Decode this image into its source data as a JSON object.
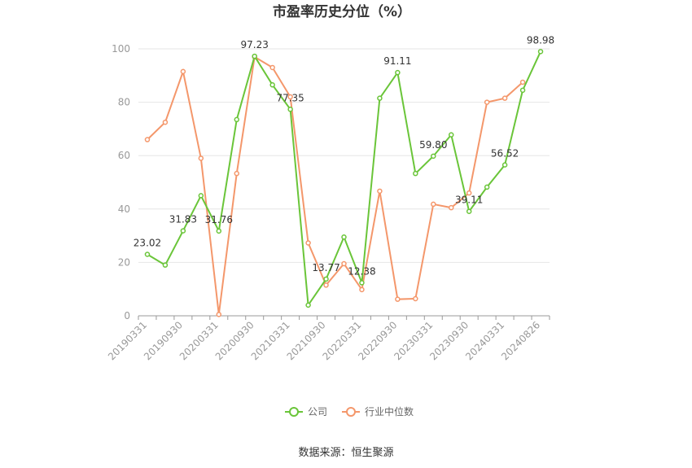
{
  "chart_data": {
    "type": "line",
    "title": "市盈率历史分位（%）",
    "xlabel": "",
    "ylabel": "",
    "ylim": [
      0,
      100
    ],
    "yticks": [
      0,
      20,
      40,
      60,
      80,
      100
    ],
    "categories": [
      "20190331",
      "20190630",
      "20190930",
      "20191231",
      "20200331",
      "20200630",
      "20200930",
      "20201231",
      "20210331",
      "20210630",
      "20210930",
      "20211231",
      "20220331",
      "20220630",
      "20220930",
      "20221231",
      "20230331",
      "20230630",
      "20230930",
      "20231231",
      "20240331",
      "20240630",
      "20240826"
    ],
    "xtick_labels": [
      "20190331",
      "20190930",
      "20200331",
      "20200930",
      "20210331",
      "20210930",
      "20220331",
      "20220930",
      "20230331",
      "20230930",
      "20240331",
      "20240826"
    ],
    "series": [
      {
        "name": "公司",
        "color": "#6ac539",
        "values": [
          23.02,
          19.0,
          31.83,
          45.0,
          31.76,
          73.5,
          97.23,
          86.5,
          77.35,
          4.0,
          13.77,
          29.5,
          12.38,
          81.5,
          91.11,
          53.3,
          59.8,
          67.8,
          39.11,
          48.2,
          56.52,
          84.5,
          98.98
        ],
        "labels": [
          "23.02",
          null,
          "31.83",
          null,
          "31.76",
          null,
          "97.23",
          null,
          "77.35",
          null,
          "13.77",
          null,
          "12.38",
          null,
          "91.11",
          null,
          "59.80",
          null,
          "39.11",
          null,
          "56.52",
          null,
          "98.98"
        ]
      },
      {
        "name": "行业中位数",
        "color": "#f4976b",
        "values": [
          66.0,
          72.5,
          91.5,
          59.0,
          0.5,
          53.3,
          97.0,
          93.0,
          82.0,
          27.3,
          11.5,
          19.5,
          9.8,
          46.7,
          6.2,
          6.4,
          41.8,
          40.5,
          46.0,
          80.0,
          81.5,
          87.5,
          null
        ]
      }
    ],
    "legend_position": "bottom",
    "grid": true
  },
  "footer": {
    "source": "数据来源：恒生聚源"
  }
}
